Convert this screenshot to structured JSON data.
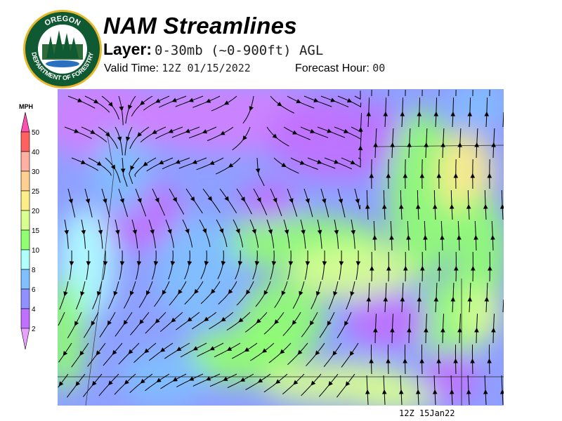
{
  "header": {
    "title": "NAM Streamlines",
    "layer_label": "Layer:",
    "layer_value": "0-30mb (~0-900ft) AGL",
    "valid_label": "Valid Time:",
    "valid_value": "12Z 01/15/2022",
    "forecast_label": "Forecast Hour:",
    "forecast_value": "00"
  },
  "logo": {
    "text_top": "OREGON",
    "text_bottom": "DEPARTMENT OF FORESTRY"
  },
  "legend": {
    "unit": "MPH",
    "ticks": [
      "2",
      "4",
      "6",
      "8",
      "10",
      "15",
      "20",
      "25",
      "30",
      "40",
      "50"
    ],
    "colors": [
      "#c070ff",
      "#9090ff",
      "#80c0ff",
      "#b0ffff",
      "#90ff70",
      "#d8ff90",
      "#ffee88",
      "#ffd090",
      "#ffb0a0",
      "#ff6060"
    ],
    "over_color": "#ff50b0",
    "under_color": "#e8a0ff"
  },
  "map": {
    "timestamp": "12Z 15Jan22"
  }
}
